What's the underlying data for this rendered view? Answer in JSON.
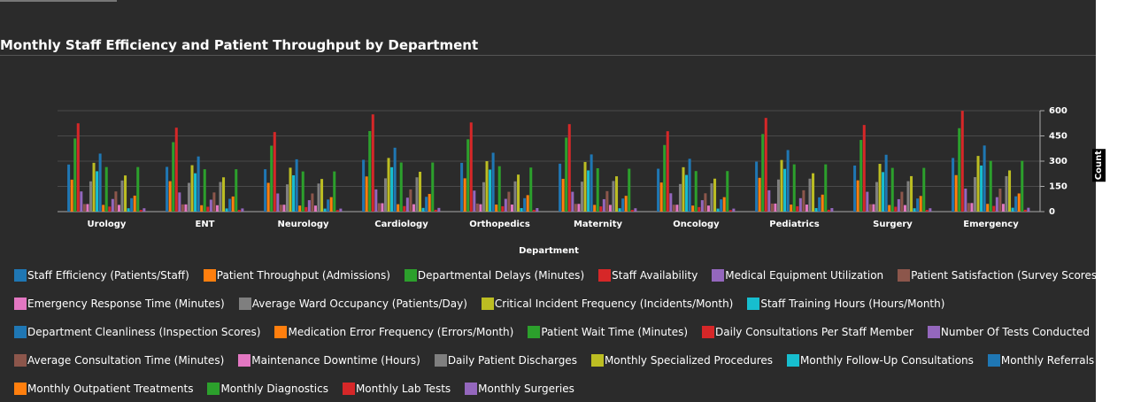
{
  "chart_data": {
    "type": "bar",
    "title": "Monthly Staff Efficiency and Patient Throughput by Department",
    "x_label": "Department",
    "y_label": "Count",
    "categories": [
      "Urology",
      "ENT",
      "Neurology",
      "Cardiology",
      "Orthopedics",
      "Maternity",
      "Oncology",
      "Pediatrics",
      "Surgery",
      "Emergency"
    ],
    "ylim": [
      0,
      600
    ],
    "yticks": [
      0,
      150,
      300,
      450,
      600
    ],
    "grid": true,
    "series": [
      {
        "name": "Staff Efficiency (Patients/Staff)",
        "color": "#1f77b4",
        "values": [
          280,
          266,
          252,
          308,
          290,
          285,
          255,
          297,
          274,
          319
        ]
      },
      {
        "name": "Patient Throughput (Admissions)",
        "color": "#ff7f0e",
        "values": [
          190,
          181,
          171,
          209,
          198,
          195,
          173,
          201,
          186,
          217
        ]
      },
      {
        "name": "Departmental Delays (Minutes)",
        "color": "#2ca02c",
        "values": [
          435,
          413,
          392,
          479,
          430,
          440,
          396,
          461,
          426,
          496
        ]
      },
      {
        "name": "Staff Availability",
        "color": "#d62728",
        "values": [
          525,
          499,
          473,
          578,
          530,
          520,
          478,
          557,
          515,
          599
        ]
      },
      {
        "name": "Medical Equipment Utilization",
        "color": "#9467bd",
        "values": [
          120,
          114,
          108,
          132,
          125,
          118,
          109,
          127,
          118,
          137
        ]
      },
      {
        "name": "Patient Satisfaction (Survey Scores)",
        "color": "#8c564b",
        "values": [
          45,
          43,
          41,
          50,
          48,
          46,
          41,
          48,
          44,
          51
        ]
      },
      {
        "name": "Emergency Response Time (Minutes)",
        "color": "#e377c2",
        "values": [
          45,
          43,
          41,
          50,
          44,
          46,
          41,
          48,
          44,
          51
        ]
      },
      {
        "name": "Average Ward Occupancy (Patients/Day)",
        "color": "#7f7f7f",
        "values": [
          180,
          171,
          162,
          198,
          175,
          178,
          164,
          191,
          176,
          205
        ]
      },
      {
        "name": "Critical Incident Frequency (Incidents/Month)",
        "color": "#bcbd22",
        "values": [
          290,
          276,
          261,
          319,
          300,
          295,
          264,
          307,
          284,
          331
        ]
      },
      {
        "name": "Staff Training Hours (Hours/Month)",
        "color": "#17becf",
        "values": [
          240,
          228,
          216,
          264,
          250,
          245,
          218,
          254,
          235,
          274
        ]
      },
      {
        "name": "Department Cleanliness (Inspection Scores)",
        "color": "#1f77b4",
        "values": [
          345,
          328,
          311,
          380,
          350,
          340,
          314,
          366,
          338,
          393
        ]
      },
      {
        "name": "Medication Error Frequency (Errors/Month)",
        "color": "#ff7f0e",
        "values": [
          40,
          38,
          36,
          44,
          42,
          40,
          36,
          42,
          39,
          46
        ]
      },
      {
        "name": "Patient Wait Time (Minutes)",
        "color": "#2ca02c",
        "values": [
          265,
          252,
          239,
          292,
          270,
          258,
          241,
          281,
          260,
          302
        ]
      },
      {
        "name": "Daily Consultations Per Staff Member",
        "color": "#d62728",
        "values": [
          30,
          29,
          27,
          33,
          32,
          31,
          27,
          32,
          29,
          34
        ]
      },
      {
        "name": "Number Of Tests Conducted",
        "color": "#9467bd",
        "values": [
          75,
          71,
          68,
          83,
          76,
          74,
          68,
          80,
          74,
          86
        ]
      },
      {
        "name": "Average Consultation Time (Minutes)",
        "color": "#8c564b",
        "values": [
          120,
          114,
          108,
          132,
          118,
          122,
          109,
          127,
          118,
          137
        ]
      },
      {
        "name": "Maintenance Downtime (Hours)",
        "color": "#e377c2",
        "values": [
          40,
          38,
          36,
          44,
          42,
          40,
          36,
          42,
          39,
          46
        ]
      },
      {
        "name": "Daily Patient Discharges",
        "color": "#7f7f7f",
        "values": [
          185,
          176,
          167,
          204,
          180,
          182,
          168,
          196,
          181,
          211
        ]
      },
      {
        "name": "Monthly Specialized Procedures",
        "color": "#bcbd22",
        "values": [
          215,
          204,
          194,
          237,
          220,
          210,
          196,
          228,
          211,
          245
        ]
      },
      {
        "name": "Monthly Follow-Up Consultations",
        "color": "#17becf",
        "values": [
          20,
          19,
          18,
          22,
          21,
          20,
          18,
          21,
          20,
          23
        ]
      },
      {
        "name": "Monthly Referrals",
        "color": "#1f77b4",
        "values": [
          80,
          76,
          72,
          88,
          80,
          78,
          73,
          85,
          78,
          91
        ]
      },
      {
        "name": "Monthly Outpatient Treatments",
        "color": "#ff7f0e",
        "values": [
          95,
          90,
          86,
          105,
          98,
          94,
          86,
          101,
          93,
          108
        ]
      },
      {
        "name": "Monthly Diagnostics",
        "color": "#2ca02c",
        "values": [
          265,
          252,
          239,
          292,
          262,
          255,
          241,
          281,
          260,
          302
        ]
      },
      {
        "name": "Monthly Lab Tests",
        "color": "#d62728",
        "values": [
          10,
          10,
          9,
          11,
          10,
          10,
          9,
          11,
          10,
          11
        ]
      },
      {
        "name": "Monthly Surgeries",
        "color": "#9467bd",
        "values": [
          20,
          19,
          18,
          22,
          21,
          20,
          18,
          21,
          20,
          23
        ]
      }
    ]
  }
}
